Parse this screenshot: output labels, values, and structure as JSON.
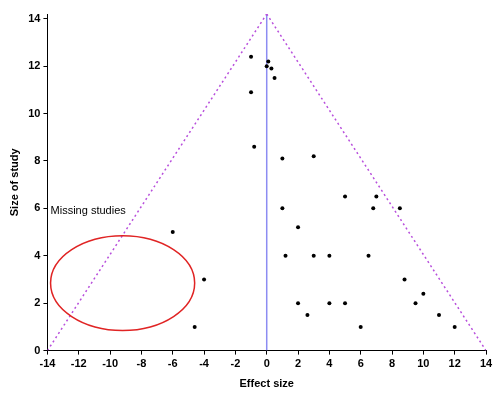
{
  "chart_data": {
    "type": "scatter",
    "x_label": "Effect size",
    "y_label": "Size of study",
    "xlim": [
      -14,
      14
    ],
    "ylim": [
      0,
      14.2
    ],
    "xticks": [
      -14,
      -12,
      -10,
      -8,
      -6,
      -4,
      -2,
      0,
      2,
      4,
      6,
      8,
      10,
      12,
      14
    ],
    "yticks": [
      0,
      2,
      4,
      6,
      8,
      10,
      12,
      14
    ],
    "grid": false,
    "color": "#000000",
    "marker": "circle",
    "x": [
      -1,
      0.1,
      0,
      0.3,
      0.5,
      -1,
      -0.8,
      1,
      3,
      1,
      5,
      7,
      6.8,
      8.5,
      2,
      1.2,
      3,
      4,
      6.5,
      2,
      4,
      5,
      2.6,
      6,
      8.8,
      9.5,
      10,
      11,
      12,
      -6,
      -4,
      -4.6
    ],
    "values": [
      12.4,
      12.2,
      12.0,
      11.9,
      11.5,
      10.9,
      8.6,
      8.1,
      8.2,
      6,
      6.5,
      6.5,
      6,
      6,
      5.2,
      4,
      4,
      4,
      4,
      2,
      2,
      2,
      1.5,
      1,
      3,
      2,
      2.4,
      1.5,
      1,
      5,
      3,
      1
    ],
    "funnel_lines": [
      {
        "x": [
          -14,
          0
        ],
        "y": [
          0,
          14.2
        ]
      },
      {
        "x": [
          0,
          14
        ],
        "y": [
          14.2,
          0
        ]
      }
    ],
    "reference_line": {
      "x": 0,
      "y": [
        0,
        14.2
      ]
    },
    "missing_region": {
      "label": "Missing studies",
      "center": [
        -9.2,
        2.85
      ],
      "radius_x": 4.6,
      "radius_y": 2.0,
      "label_at": [
        -13.8,
        5.9
      ]
    }
  }
}
